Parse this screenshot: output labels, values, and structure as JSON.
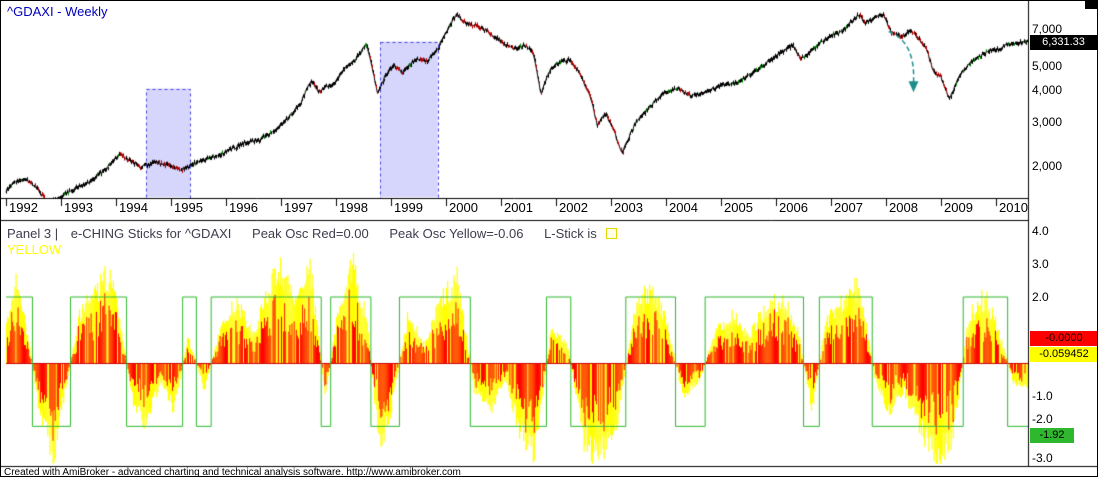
{
  "window": {
    "footer_credit": "Created with AmiBroker - advanced charting and technical analysis software. http://www.amibroker.com"
  },
  "price_panel": {
    "title": "^GDAXI - Weekly",
    "last_price_label": "6,331.33",
    "y_axis_ticks": [
      {
        "value": 7000,
        "label": "7,000"
      },
      {
        "value": 5000,
        "label": "5,000"
      },
      {
        "value": 4000,
        "label": "4,000"
      },
      {
        "value": 3000,
        "label": "3,000"
      },
      {
        "value": 2000,
        "label": "2,000"
      }
    ],
    "x_axis_years": [
      "1992",
      "1993",
      "1994",
      "1995",
      "1996",
      "1997",
      "1998",
      "1999",
      "2000",
      "2001",
      "2002",
      "2003",
      "2004",
      "2005",
      "2006",
      "2007",
      "2008",
      "2009",
      "2010"
    ]
  },
  "panel3": {
    "title": {
      "prefix": "Panel 3 |",
      "name": "e-CHING Sticks for ^GDAXI",
      "metric_red": "Peak Osc Red=0.00",
      "metric_yellow": "Peak Osc Yellow=-0.06",
      "lstick_prefix": "L-Stick is",
      "lstick_value": "YELLOW"
    },
    "value_labels": {
      "red": "-0.0000",
      "yellow": "-0.059452",
      "green": "-1.92"
    },
    "y_axis_ticks": [
      {
        "value": 4,
        "label": "4.0"
      },
      {
        "value": 3,
        "label": "3.0"
      },
      {
        "value": 2,
        "label": "2.0"
      },
      {
        "value": -1,
        "label": "-1.0"
      },
      {
        "value": -2,
        "label": "-2.0"
      },
      {
        "value": -3,
        "label": "-3.0"
      }
    ]
  },
  "colors": {
    "title_blue": "#0000bb",
    "highlight_fill": "rgba(165,165,250,0.45)",
    "highlight_border": "#4444dd",
    "arrow": "#1f8c8c",
    "osc_yellow": "#ffff00",
    "osc_red": "#ff0000",
    "step_green": "#2eb82e",
    "zero_line": "#cc0000",
    "price_label_bg": "#000000",
    "label_red_bg": "#ff0000",
    "label_yellow_bg": "#ffff00",
    "label_green_bg": "#2eb82e"
  },
  "chart_data": [
    {
      "type": "line",
      "name": "GDAXI weekly candlestick price (log scale)",
      "title": "^GDAXI - Weekly",
      "x_range": [
        1992.0,
        2010.58
      ],
      "y_scale": "log",
      "y_ticks": [
        2000,
        3000,
        4000,
        5000,
        7000
      ],
      "last_value": 6331.33,
      "keypoints": [
        [
          1992.0,
          1600
        ],
        [
          1992.15,
          1750
        ],
        [
          1992.35,
          1800
        ],
        [
          1992.5,
          1700
        ],
        [
          1992.75,
          1450
        ],
        [
          1992.95,
          1520
        ],
        [
          1993.2,
          1620
        ],
        [
          1993.5,
          1750
        ],
        [
          1993.8,
          1950
        ],
        [
          1994.05,
          2250
        ],
        [
          1994.2,
          2150
        ],
        [
          1994.45,
          2000
        ],
        [
          1994.7,
          2080
        ],
        [
          1994.95,
          2040
        ],
        [
          1995.2,
          1950
        ],
        [
          1995.45,
          2080
        ],
        [
          1995.7,
          2180
        ],
        [
          1995.95,
          2260
        ],
        [
          1996.3,
          2480
        ],
        [
          1996.6,
          2570
        ],
        [
          1996.9,
          2800
        ],
        [
          1997.1,
          3100
        ],
        [
          1997.35,
          3550
        ],
        [
          1997.55,
          4400
        ],
        [
          1997.7,
          3950
        ],
        [
          1997.8,
          4150
        ],
        [
          1997.95,
          4250
        ],
        [
          1998.15,
          4900
        ],
        [
          1998.35,
          5350
        ],
        [
          1998.55,
          6180
        ],
        [
          1998.75,
          3900
        ],
        [
          1998.9,
          4650
        ],
        [
          1999.05,
          5050
        ],
        [
          1999.2,
          4750
        ],
        [
          1999.45,
          5350
        ],
        [
          1999.65,
          5250
        ],
        [
          1999.85,
          5900
        ],
        [
          2000.0,
          6900
        ],
        [
          2000.2,
          8100
        ],
        [
          2000.35,
          7400
        ],
        [
          2000.55,
          7300
        ],
        [
          2000.75,
          6900
        ],
        [
          2000.95,
          6400
        ],
        [
          2001.2,
          5900
        ],
        [
          2001.45,
          6100
        ],
        [
          2001.6,
          5500
        ],
        [
          2001.72,
          3900
        ],
        [
          2001.9,
          4900
        ],
        [
          2002.05,
          5200
        ],
        [
          2002.25,
          5350
        ],
        [
          2002.45,
          4600
        ],
        [
          2002.6,
          3900
        ],
        [
          2002.75,
          2950
        ],
        [
          2002.9,
          3250
        ],
        [
          2003.05,
          2800
        ],
        [
          2003.2,
          2250
        ],
        [
          2003.45,
          3000
        ],
        [
          2003.7,
          3450
        ],
        [
          2003.95,
          3950
        ],
        [
          2004.2,
          4100
        ],
        [
          2004.45,
          3850
        ],
        [
          2004.7,
          3950
        ],
        [
          2004.95,
          4200
        ],
        [
          2005.3,
          4350
        ],
        [
          2005.6,
          4800
        ],
        [
          2005.95,
          5400
        ],
        [
          2006.3,
          6100
        ],
        [
          2006.45,
          5350
        ],
        [
          2006.7,
          5900
        ],
        [
          2006.95,
          6600
        ],
        [
          2007.2,
          6900
        ],
        [
          2007.5,
          8050
        ],
        [
          2007.62,
          7450
        ],
        [
          2007.8,
          7850
        ],
        [
          2007.95,
          8050
        ],
        [
          2008.1,
          6800
        ],
        [
          2008.3,
          6600
        ],
        [
          2008.45,
          7050
        ],
        [
          2008.6,
          6400
        ],
        [
          2008.75,
          5800
        ],
        [
          2008.85,
          4800
        ],
        [
          2009.0,
          4550
        ],
        [
          2009.15,
          3700
        ],
        [
          2009.35,
          4650
        ],
        [
          2009.6,
          5350
        ],
        [
          2009.85,
          5750
        ],
        [
          2010.05,
          5900
        ],
        [
          2010.25,
          6150
        ],
        [
          2010.45,
          6250
        ],
        [
          2010.58,
          6331
        ]
      ],
      "highlight_regions": [
        {
          "t_start": 1994.55,
          "t_end": 1995.35,
          "v_top": 4100,
          "v_bottom": 1520
        },
        {
          "t_start": 1998.8,
          "t_end": 1999.85,
          "v_top": 6300,
          "v_bottom": 1520
        }
      ],
      "arrow": {
        "t_start": 2008.05,
        "v_start": 6900,
        "t_end": 2008.5,
        "v_end": 4300
      }
    },
    {
      "type": "bar",
      "name": "e-CHING oscillator (yellow/red histogram with green L-stick step line)",
      "x_range": [
        1992.0,
        2010.58
      ],
      "y_range": [
        -3.4,
        4.2
      ],
      "peak_osc_red": 0.0,
      "peak_osc_yellow": -0.06,
      "lstick_current": -1.92,
      "step_levels": {
        "high": 2.0,
        "low": -1.92
      },
      "keypoints": [
        [
          1992.0,
          1.4
        ],
        [
          1992.2,
          2.9
        ],
        [
          1992.4,
          0.8
        ],
        [
          1992.6,
          -1.6
        ],
        [
          1992.85,
          -3.1
        ],
        [
          1993.1,
          -0.6
        ],
        [
          1993.35,
          1.8
        ],
        [
          1993.6,
          2.3
        ],
        [
          1993.9,
          3.1
        ],
        [
          1994.1,
          1.0
        ],
        [
          1994.3,
          -1.3
        ],
        [
          1994.55,
          -2.1
        ],
        [
          1994.8,
          -0.6
        ],
        [
          1995.05,
          -1.6
        ],
        [
          1995.3,
          0.9
        ],
        [
          1995.6,
          -0.9
        ],
        [
          1995.9,
          1.3
        ],
        [
          1996.2,
          2.1
        ],
        [
          1996.5,
          1.0
        ],
        [
          1996.8,
          2.6
        ],
        [
          1997.0,
          3.3
        ],
        [
          1997.25,
          1.9
        ],
        [
          1997.5,
          3.5
        ],
        [
          1997.8,
          -1.1
        ],
        [
          1998.05,
          2.0
        ],
        [
          1998.3,
          3.4
        ],
        [
          1998.55,
          1.4
        ],
        [
          1998.8,
          -3.2
        ],
        [
          1999.05,
          -1.0
        ],
        [
          1999.3,
          1.6
        ],
        [
          1999.6,
          0.6
        ],
        [
          1999.9,
          2.1
        ],
        [
          2000.2,
          2.9
        ],
        [
          2000.5,
          -0.9
        ],
        [
          2000.8,
          -1.6
        ],
        [
          2001.05,
          -0.5
        ],
        [
          2001.3,
          -2.1
        ],
        [
          2001.6,
          -3.0
        ],
        [
          2001.9,
          1.1
        ],
        [
          2002.2,
          0.6
        ],
        [
          2002.5,
          -2.6
        ],
        [
          2002.8,
          -3.2
        ],
        [
          2003.1,
          -2.0
        ],
        [
          2003.4,
          1.6
        ],
        [
          2003.7,
          2.6
        ],
        [
          2004.0,
          1.4
        ],
        [
          2004.3,
          -1.1
        ],
        [
          2004.6,
          -0.6
        ],
        [
          2004.9,
          1.1
        ],
        [
          2005.2,
          1.6
        ],
        [
          2005.5,
          0.9
        ],
        [
          2005.8,
          1.9
        ],
        [
          2006.1,
          2.3
        ],
        [
          2006.4,
          1.0
        ],
        [
          2006.65,
          -1.6
        ],
        [
          2006.9,
          1.4
        ],
        [
          2007.2,
          2.1
        ],
        [
          2007.5,
          2.6
        ],
        [
          2007.8,
          -0.6
        ],
        [
          2008.05,
          -1.6
        ],
        [
          2008.3,
          -0.9
        ],
        [
          2008.6,
          -2.1
        ],
        [
          2008.9,
          -3.3
        ],
        [
          2009.2,
          -2.6
        ],
        [
          2009.5,
          1.6
        ],
        [
          2009.8,
          2.3
        ],
        [
          2010.05,
          1.0
        ],
        [
          2010.3,
          -0.6
        ],
        [
          2010.58,
          -0.9
        ]
      ]
    }
  ]
}
